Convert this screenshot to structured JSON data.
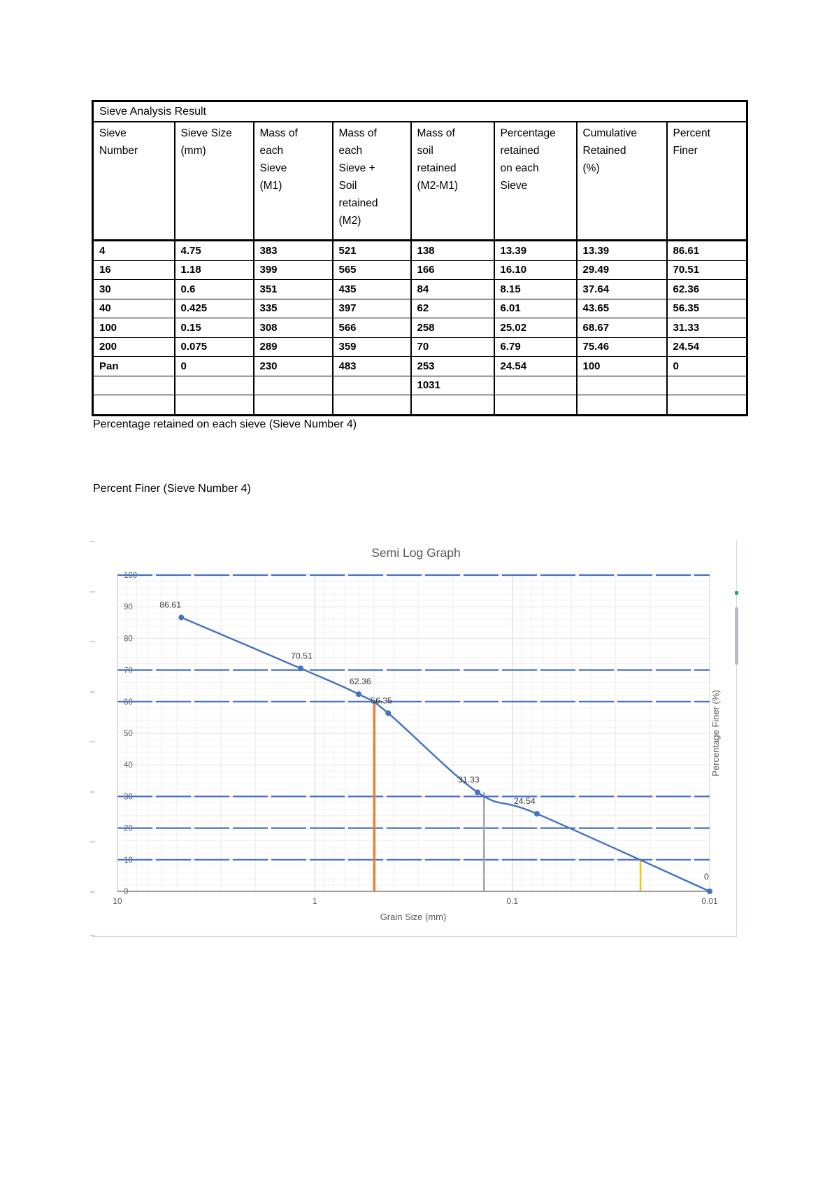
{
  "table": {
    "title": "Sieve Analysis Result",
    "headers": [
      "Sieve\nNumber",
      "Sieve Size\n(mm)",
      "Mass of\neach\nSieve\n(M1)",
      "Mass of\neach\nSieve +\nSoil\nretained\n(M2)",
      "Mass of\nsoil\nretained\n(M2-M1)",
      "Percentage\nretained\non each\nSieve",
      "Cumulative\nRetained\n(%)",
      "Percent\nFiner"
    ],
    "rows": [
      [
        "4",
        "4.75",
        "383",
        "521",
        "138",
        "13.39",
        "13.39",
        "86.61"
      ],
      [
        "16",
        "1.18",
        "399",
        "565",
        "166",
        "16.10",
        "29.49",
        "70.51"
      ],
      [
        "30",
        "0.6",
        "351",
        "435",
        "84",
        "8.15",
        "37.64",
        "62.36"
      ],
      [
        "40",
        "0.425",
        "335",
        "397",
        "62",
        "6.01",
        "43.65",
        "56.35"
      ],
      [
        "100",
        "0.15",
        "308",
        "566",
        "258",
        "25.02",
        "68.67",
        "31.33"
      ],
      [
        "200",
        "0.075",
        "289",
        "359",
        "70",
        "6.79",
        "75.46",
        "24.54"
      ],
      [
        "Pan",
        "0",
        "230",
        "483",
        "253",
        "24.54",
        "100",
        "0"
      ],
      [
        "",
        "",
        "",
        "",
        "1031",
        "",
        "",
        ""
      ],
      [
        "",
        "",
        "",
        "",
        "",
        "",
        "",
        ""
      ]
    ]
  },
  "captions": {
    "retained": "Percentage retained on each sieve (Sieve Number 4)",
    "finer": "Percent Finer (Sieve Number 4)"
  },
  "chart_data": {
    "type": "line",
    "title": "Semi Log Graph",
    "xlabel": "Grain Size (mm)",
    "ylabel": "Percentage Finer (%)",
    "x_scale": "log-reversed",
    "x_range": [
      10,
      0.01
    ],
    "x_ticks": [
      {
        "value": 10,
        "label": "10"
      },
      {
        "value": 1,
        "label": "1"
      },
      {
        "value": 0.1,
        "label": "0.1"
      },
      {
        "value": 0.01,
        "label": "0.01"
      }
    ],
    "ylim": [
      0,
      100
    ],
    "y_tick_step": 10,
    "grid": true,
    "series": [
      {
        "name": "Percent Finer",
        "color": "#4472C4",
        "points": [
          {
            "x": 4.75,
            "y": 86.61,
            "label": "86.61",
            "dx": -31
          },
          {
            "x": 1.18,
            "y": 70.51,
            "label": "70.51",
            "dx": -14
          },
          {
            "x": 0.6,
            "y": 62.36,
            "label": "62.36",
            "dx": -13
          },
          {
            "x": 0.425,
            "y": 56.35,
            "label": "56.35",
            "dx": -25
          },
          {
            "x": 0.15,
            "y": 31.33,
            "label": "31.33",
            "dx": -28
          },
          {
            "x": 0.075,
            "y": 24.54,
            "label": "24.54",
            "dx": -33
          },
          {
            "x": 0.01,
            "y": 0,
            "label": "0",
            "dx": -8,
            "dy": -17
          }
        ]
      }
    ],
    "reference_lines_y": [
      100,
      70,
      60,
      30,
      20,
      10
    ],
    "reference_line_color": "#4472C4",
    "construction_lines": [
      {
        "name": "d60-line",
        "at_mm": 0.5,
        "from_pct": 60,
        "color": "#ED7D31",
        "width": 3.5
      },
      {
        "name": "d30-line",
        "at_mm": 0.139,
        "from_pct": 31.33,
        "color": "#A5A5A5",
        "width": 2.5
      },
      {
        "name": "d10-line",
        "at_mm": 0.0224,
        "from_pct": 10,
        "color": "#FFC000",
        "width": 2.5
      }
    ],
    "colors": {
      "axis_text": "#595959",
      "title_text": "#595959",
      "major_grid": "#e2e2e2",
      "minor_grid": "#f2f2f2",
      "major_vgrid": "#d5d5d5",
      "minor_vgrid": "#efefef",
      "axis_line": "#bfbfbf",
      "x_axis_line": "#8f8f8f"
    }
  }
}
